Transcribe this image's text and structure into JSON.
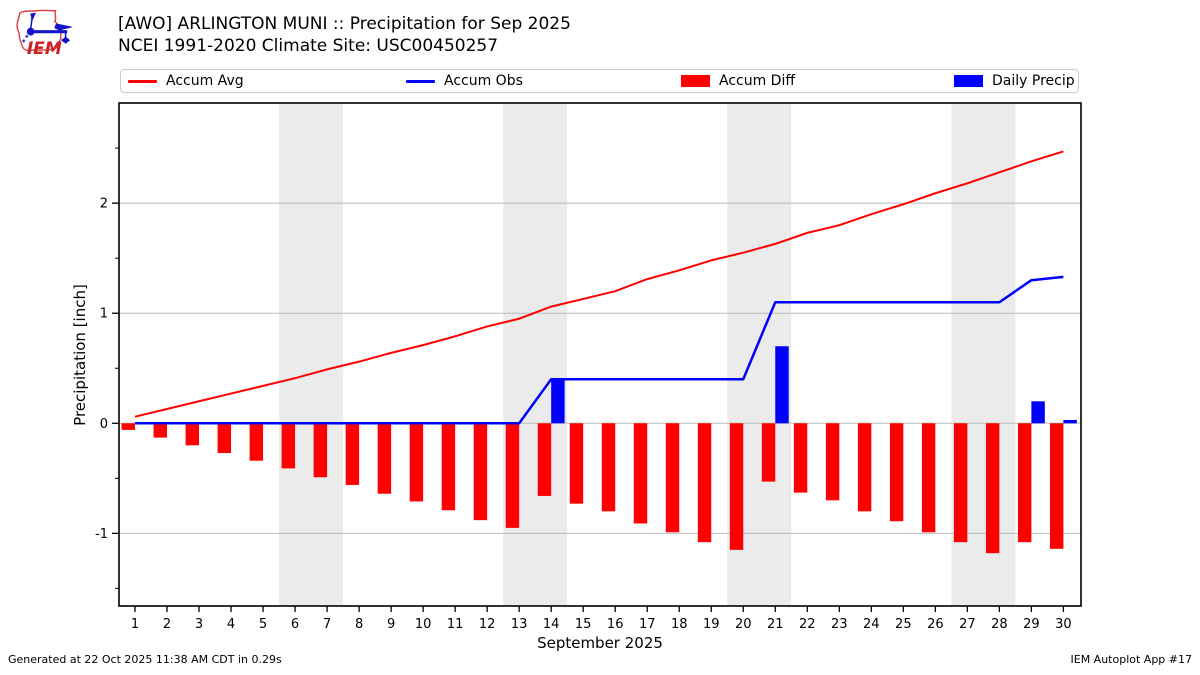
{
  "header": {
    "title_line1": "[AWO] ARLINGTON MUNI :: Precipitation for Sep 2025",
    "title_line2": "NCEI 1991-2020 Climate Site: USC00450257",
    "logo_text": "IEM"
  },
  "legend": {
    "items": [
      {
        "label": "Accum Avg",
        "swatch": "line",
        "color": "#ff0000"
      },
      {
        "label": "Accum Obs",
        "swatch": "line",
        "color": "#0000ff"
      },
      {
        "label": "Accum Diff",
        "swatch": "patch",
        "color": "#ff0000"
      },
      {
        "label": "Daily Precip",
        "swatch": "patch",
        "color": "#0000ff"
      }
    ]
  },
  "footer": {
    "generated": "Generated at 22 Oct 2025 11:38 AM CDT in 0.29s",
    "app": "IEM Autoplot App #17"
  },
  "chart_data": {
    "type": "bar",
    "title": "[AWO] ARLINGTON MUNI :: Precipitation for Sep 2025",
    "subtitle": "NCEI 1991-2020 Climate Site: USC00450257",
    "xlabel": "September 2025",
    "ylabel": "Precipitation [inch]",
    "x": [
      1,
      2,
      3,
      4,
      5,
      6,
      7,
      8,
      9,
      10,
      11,
      12,
      13,
      14,
      15,
      16,
      17,
      18,
      19,
      20,
      21,
      22,
      23,
      24,
      25,
      26,
      27,
      28,
      29,
      30
    ],
    "series": [
      {
        "name": "Accum Avg",
        "type": "line",
        "color": "#ff0000",
        "stroke_width": 2,
        "values": [
          0.06,
          0.13,
          0.2,
          0.27,
          0.34,
          0.41,
          0.49,
          0.56,
          0.64,
          0.71,
          0.79,
          0.88,
          0.95,
          1.06,
          1.13,
          1.2,
          1.31,
          1.39,
          1.48,
          1.55,
          1.63,
          1.73,
          1.8,
          1.9,
          1.99,
          2.09,
          2.18,
          2.28,
          2.38,
          2.47
        ]
      },
      {
        "name": "Accum Obs",
        "type": "line",
        "color": "#0000ff",
        "stroke_width": 2.5,
        "values": [
          0,
          0,
          0,
          0,
          0,
          0,
          0,
          0,
          0,
          0,
          0,
          0,
          0,
          0.4,
          0.4,
          0.4,
          0.4,
          0.4,
          0.4,
          0.4,
          1.1,
          1.1,
          1.1,
          1.1,
          1.1,
          1.1,
          1.1,
          1.1,
          1.3,
          1.33
        ]
      },
      {
        "name": "Accum Diff",
        "type": "bar",
        "color": "#ff0000",
        "offset": -0.21,
        "bar_width": 0.42,
        "values": [
          -0.06,
          -0.13,
          -0.2,
          -0.27,
          -0.34,
          -0.41,
          -0.49,
          -0.56,
          -0.64,
          -0.71,
          -0.79,
          -0.88,
          -0.95,
          -0.66,
          -0.73,
          -0.8,
          -0.91,
          -0.99,
          -1.08,
          -1.15,
          -0.53,
          -0.63,
          -0.7,
          -0.8,
          -0.89,
          -0.99,
          -1.08,
          -1.18,
          -1.08,
          -1.14
        ]
      },
      {
        "name": "Daily Precip",
        "type": "bar",
        "color": "#0000ff",
        "offset": 0.21,
        "bar_width": 0.42,
        "values": [
          0,
          0,
          0,
          0,
          0,
          0,
          0,
          0,
          0,
          0,
          0,
          0,
          0,
          0.4,
          0,
          0,
          0,
          0,
          0,
          0,
          0.7,
          0,
          0,
          0,
          0,
          0,
          0,
          0,
          0.2,
          0.03
        ]
      }
    ],
    "xlim": [
      0.5,
      30.55
    ],
    "ylim": [
      -1.66,
      2.91
    ],
    "xticks": [
      1,
      2,
      3,
      4,
      5,
      6,
      7,
      8,
      9,
      10,
      11,
      12,
      13,
      14,
      15,
      16,
      17,
      18,
      19,
      20,
      21,
      22,
      23,
      24,
      25,
      26,
      27,
      28,
      29,
      30
    ],
    "yticks": [
      -1,
      0,
      1,
      2
    ],
    "yticks_minor": [
      -1.5,
      -0.5,
      0.5,
      1.5,
      2.5
    ],
    "grid": true,
    "grid_color": "#bbbbbb",
    "weekend_bands": [
      [
        5.5,
        7.5
      ],
      [
        12.5,
        14.5
      ],
      [
        19.5,
        21.5
      ],
      [
        26.5,
        28.5
      ]
    ],
    "band_color": "#ebebeb",
    "legend_position": "top"
  }
}
